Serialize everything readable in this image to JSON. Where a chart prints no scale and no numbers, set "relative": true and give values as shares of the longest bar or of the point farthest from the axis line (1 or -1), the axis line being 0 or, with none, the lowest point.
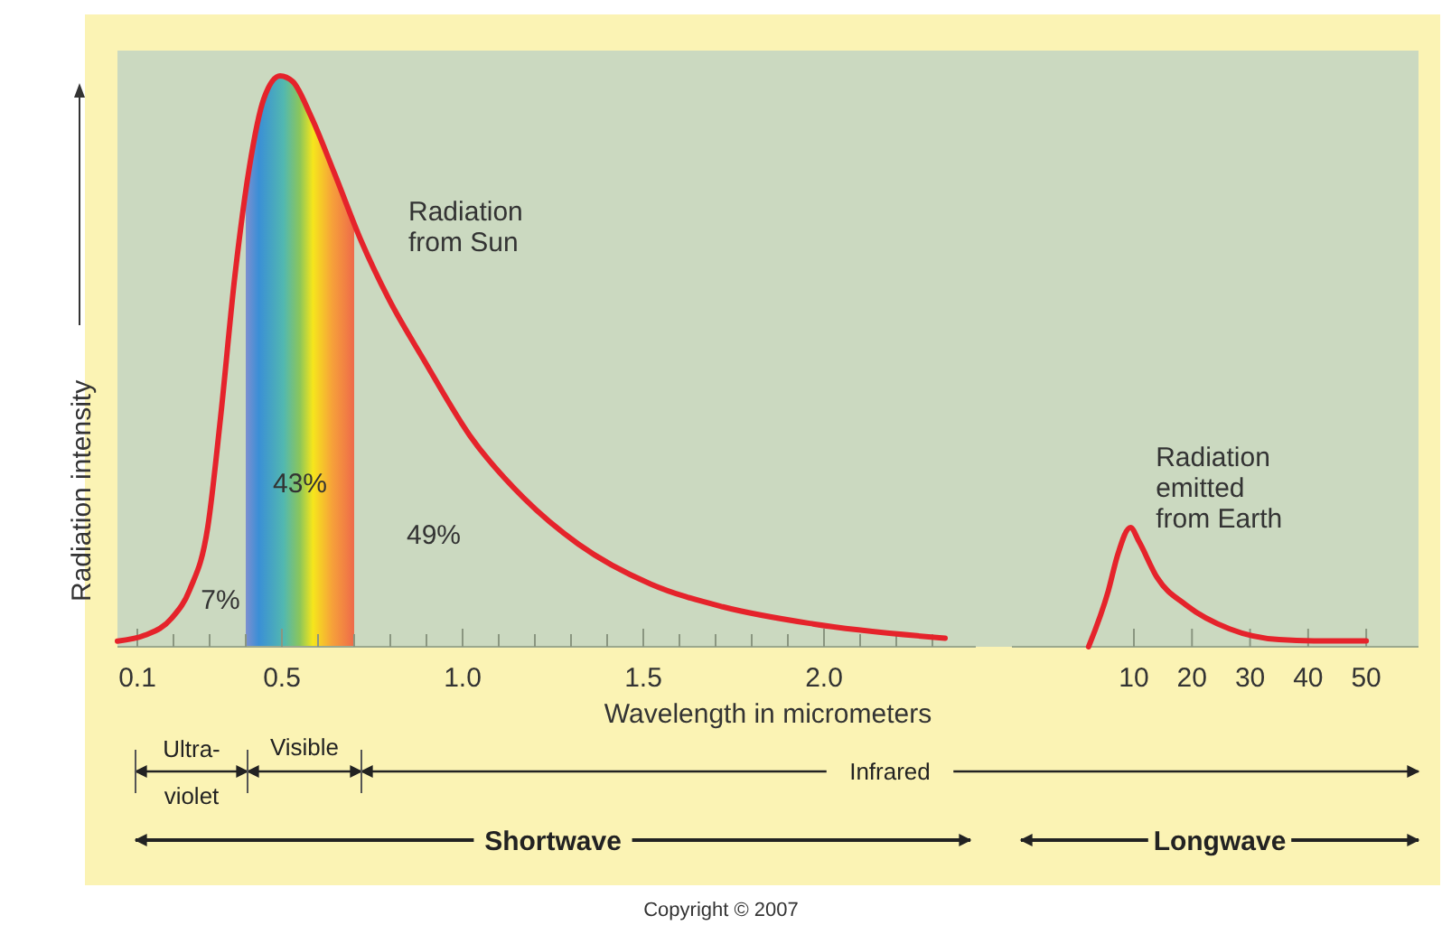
{
  "chart_data": [
    {
      "type": "line",
      "xlabel": "Wavelength in micrometers",
      "ylabel": "Radiation intensity",
      "relative": true,
      "x": [
        0.045,
        0.12,
        0.195,
        0.245,
        0.295,
        0.33,
        0.37,
        0.41,
        0.45,
        0.495,
        0.53,
        0.58,
        0.645,
        0.72,
        0.795,
        0.895,
        1.02,
        1.17,
        1.32,
        1.52,
        1.72,
        1.97,
        2.335
      ],
      "series": [
        {
          "color": "#e5232b",
          "values": [
            0.01,
            0.02,
            0.05,
            0.1,
            0.21,
            0.4,
            0.65,
            0.84,
            0.96,
            1.0,
            0.99,
            0.93,
            0.83,
            0.71,
            0.61,
            0.5,
            0.37,
            0.26,
            0.18,
            0.11,
            0.07,
            0.04,
            0.015
          ]
        }
      ],
      "xlim": [
        0.045,
        2.42
      ],
      "xticks": [
        0.1,
        {
          "value": 0.2,
          "label": null
        },
        {
          "value": 0.3,
          "label": null
        },
        {
          "value": 0.4,
          "label": null
        },
        0.5,
        {
          "value": 0.6,
          "label": null
        },
        {
          "value": 0.7,
          "label": null
        },
        {
          "value": 0.8,
          "label": null
        },
        {
          "value": 0.9,
          "label": null
        },
        {
          "value": 1,
          "label": "1.0"
        },
        {
          "value": 1.1,
          "label": null
        },
        {
          "value": 1.2,
          "label": null
        },
        {
          "value": 1.3,
          "label": null
        },
        {
          "value": 1.4,
          "label": null
        },
        1.5,
        {
          "value": 1.6,
          "label": null
        },
        {
          "value": 1.7,
          "label": null
        },
        {
          "value": 1.8,
          "label": null
        },
        {
          "value": 1.9,
          "label": null
        },
        {
          "value": 2,
          "label": "2.0"
        },
        {
          "value": 2.1,
          "label": null
        },
        {
          "value": 2.2,
          "label": null
        },
        {
          "value": 2.3,
          "label": null
        }
      ],
      "bands": [
        {
          "axis": "x",
          "from": 0.4,
          "to": 0.7,
          "label": "43%",
          "color": "#f6e61c"
        }
      ],
      "annotations": [
        {
          "text": "Radiation from Sun",
          "x": 0.78,
          "y": 0.64
        },
        "7%",
        "49%",
        "Ultra-violet",
        "Visible",
        "Infrared",
        "Shortwave",
        "Copyright © 2007"
      ]
    },
    {
      "type": "line",
      "relative": true,
      "x": [
        2.2,
        5.6,
        7.2,
        9.4,
        10.9,
        14,
        19,
        26.5,
        35,
        41,
        50
      ],
      "series": [
        {
          "color": "#e5232b",
          "values": [
            0,
            0.47,
            0.77,
            1.0,
            0.88,
            0.58,
            0.35,
            0.15,
            0.06,
            0.05,
            0.05
          ]
        }
      ],
      "xlim": [
        -11,
        59
      ],
      "xticks": [
        10,
        20,
        30,
        40,
        50
      ],
      "annotations": [
        {
          "text": "Radiation emitted from Earth",
          "x": 9.4,
          "y": 1.0
        },
        "Longwave"
      ]
    }
  ]
}
